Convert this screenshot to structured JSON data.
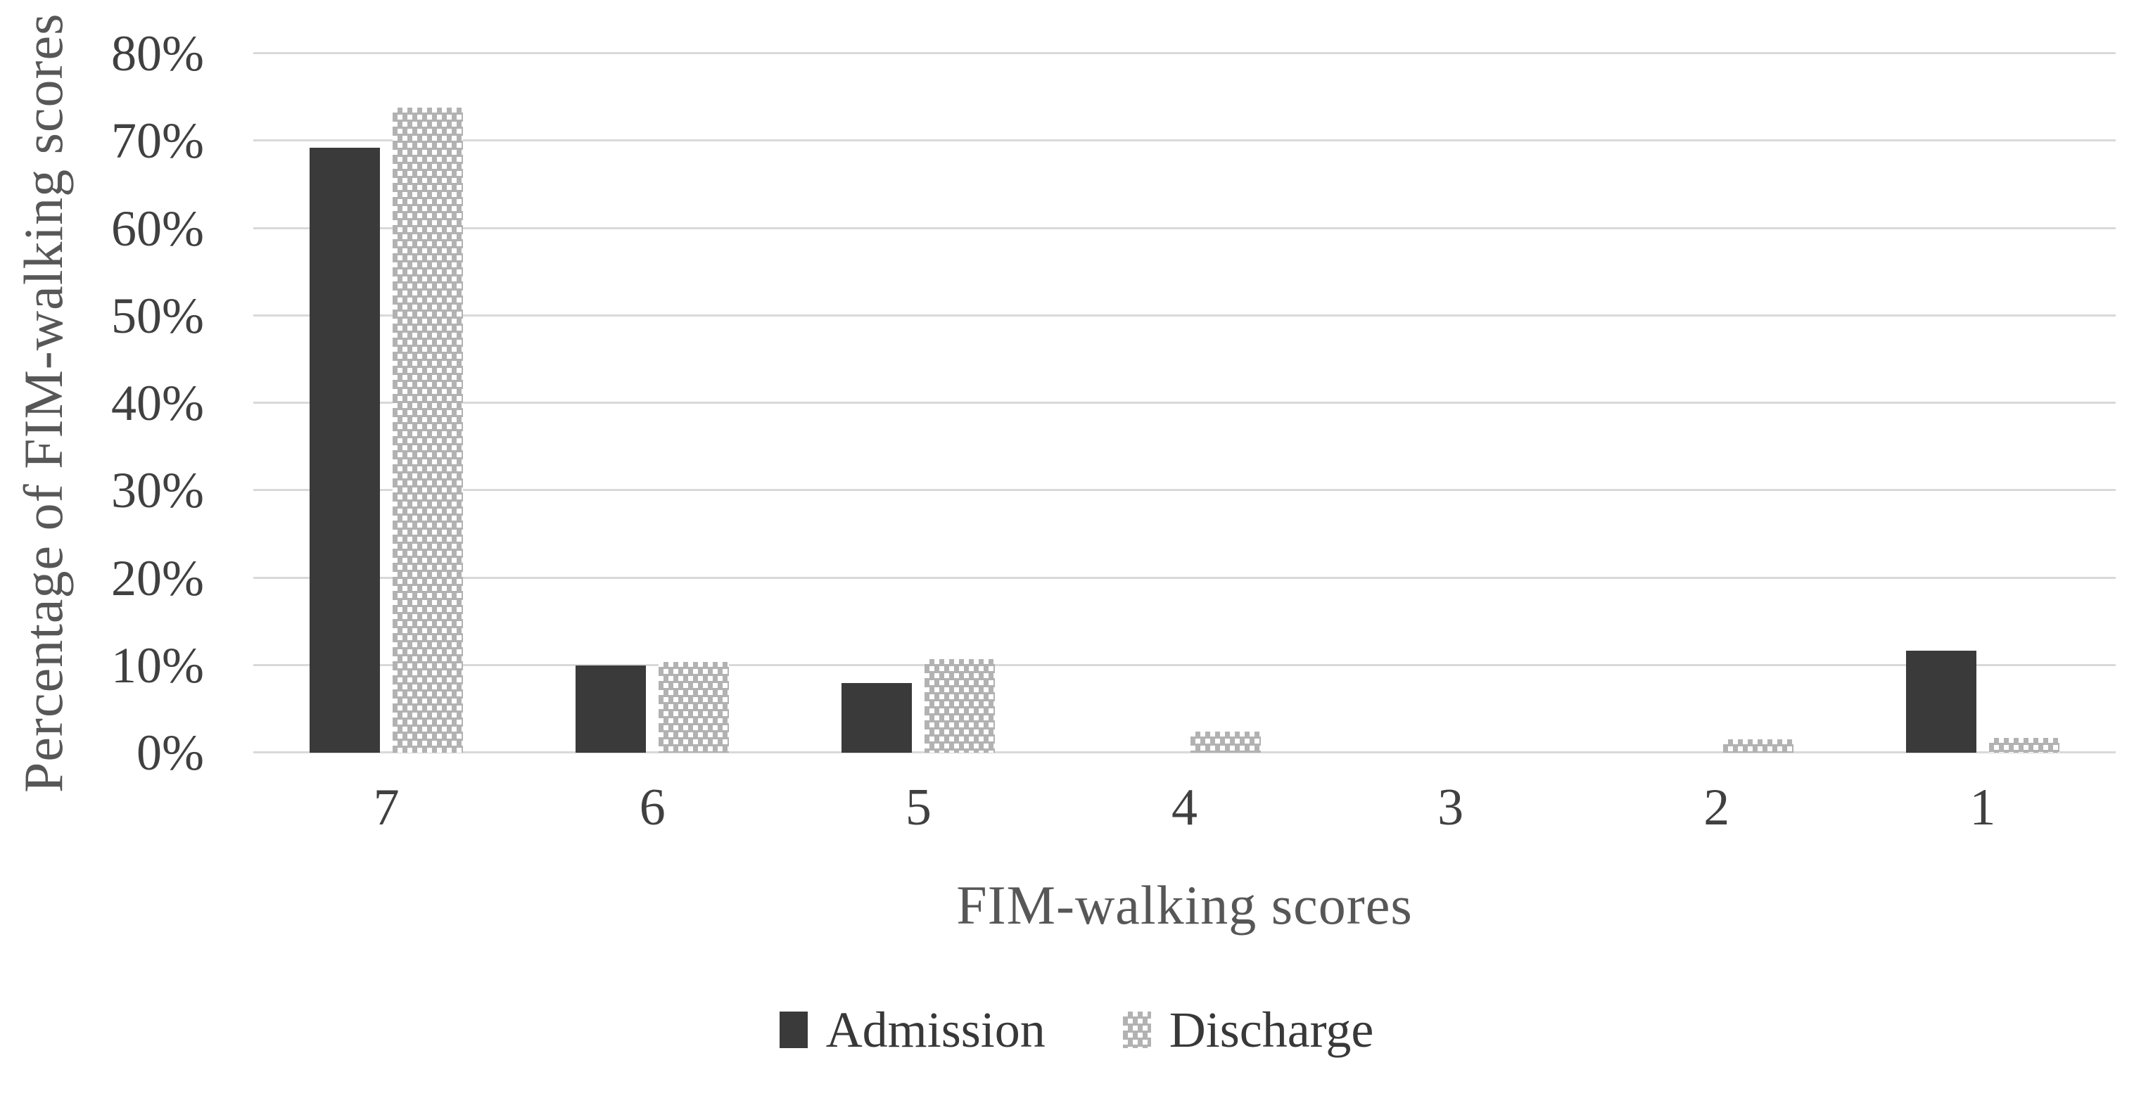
{
  "figure": {
    "background": "#ffffff"
  },
  "chart_data": {
    "type": "bar",
    "title": "",
    "categories": [
      "7",
      "6",
      "5",
      "4",
      "3",
      "2",
      "1"
    ],
    "series": [
      {
        "name": "Admission",
        "pattern": "solid",
        "color": "#3a3a3a",
        "values": [
          69.2,
          10,
          8,
          0,
          0,
          0,
          11.7
        ]
      },
      {
        "name": "Discharge",
        "pattern": "white-square-dot-grid",
        "color": "#b2b2b2",
        "values": [
          73.8,
          10.4,
          10.7,
          2.4,
          0,
          1.5,
          1.7
        ]
      }
    ],
    "xlabel": "FIM-walking scores",
    "ylabel": "Percentage of FIM-walking scores",
    "ylim": [
      0,
      80
    ],
    "ytick_step": 10,
    "ytick_labels": [
      "0%",
      "10%",
      "20%",
      "30%",
      "40%",
      "50%",
      "60%",
      "70%",
      "80%"
    ],
    "grid": true,
    "legend_position": "bottom",
    "colors": {
      "gridline": "#d9d9d9",
      "tick_text": "#404040",
      "axis_title_text": "#575757"
    }
  }
}
